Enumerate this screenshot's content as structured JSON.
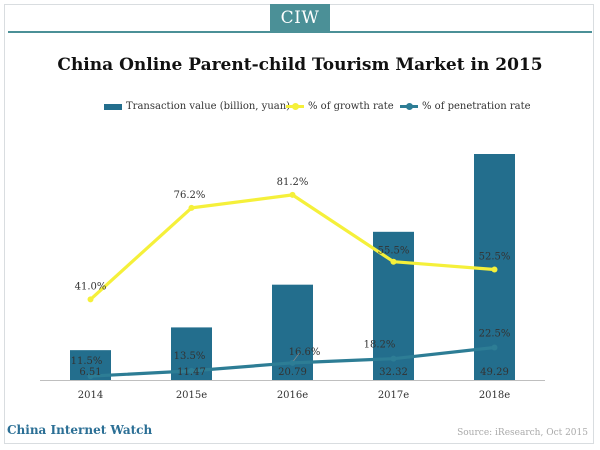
{
  "brand": {
    "label": "CIW"
  },
  "footer": {
    "left": "China Internet Watch",
    "right": "Source: iResearch, Oct 2015"
  },
  "colors": {
    "bar": "#236e8d",
    "growth": "#f5f03a",
    "penetration": "#2d7d95",
    "brand": "#4b9097",
    "footer_left": "#2b6f95"
  },
  "chart_data": {
    "type": "bar",
    "title": "China Online Parent-child Tourism Market in 2015",
    "categories": [
      "2014",
      "2015e",
      "2016e",
      "2017e",
      "2018e"
    ],
    "series": [
      {
        "name": "Transaction value (billion, yuan)",
        "kind": "bar",
        "values": [
          6.51,
          11.47,
          20.79,
          32.32,
          49.29
        ],
        "labels": [
          "6.51",
          "11.47",
          "20.79",
          "32.32",
          "49.29"
        ]
      },
      {
        "name": "% of growth rate",
        "kind": "line",
        "values": [
          41.0,
          76.2,
          81.2,
          55.5,
          52.5
        ],
        "labels": [
          "41.0%",
          "76.2%",
          "81.2%",
          "55.5%",
          "52.5%"
        ]
      },
      {
        "name": "% of penetration rate",
        "kind": "line",
        "values": [
          11.5,
          13.5,
          16.6,
          18.2,
          22.5
        ],
        "labels": [
          "11.5%",
          "13.5%",
          "16.6%",
          "18.2%",
          "22.5%"
        ]
      }
    ],
    "xlabel": "",
    "ylabel": "",
    "ylim": [
      0,
      55
    ],
    "legend_position": "top",
    "grid": false
  }
}
